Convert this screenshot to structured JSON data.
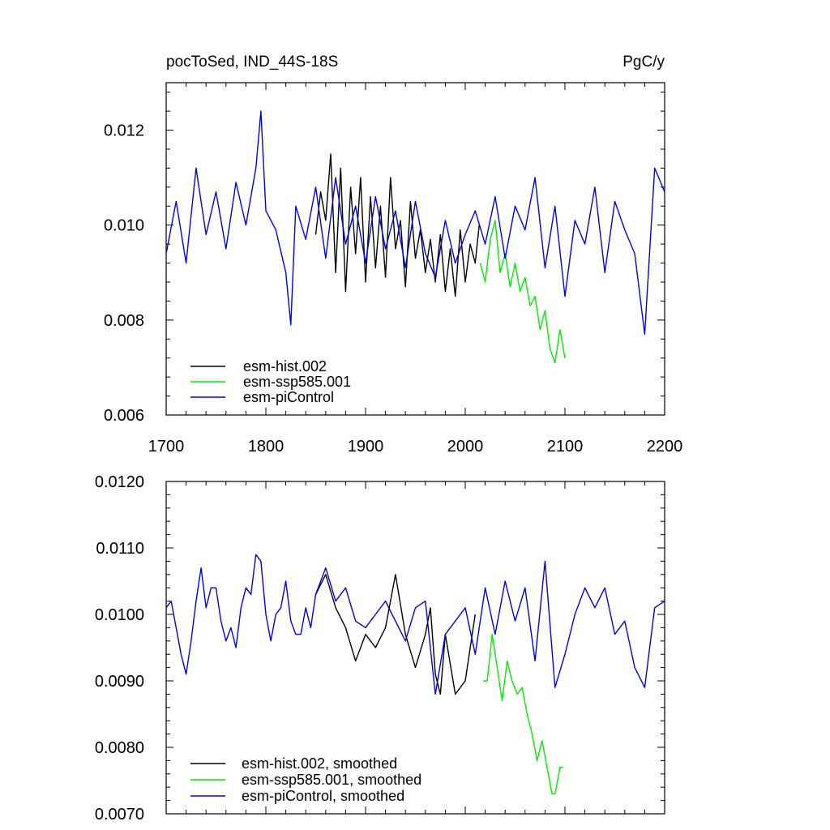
{
  "chart_data": [
    {
      "type": "line",
      "title_left": "pocToSed, IND_44S-18S",
      "title_right": "PgC/y",
      "xlim": [
        1700,
        2200
      ],
      "ylim": [
        0.006,
        0.013
      ],
      "x_ticks": [
        1700,
        1800,
        1900,
        2000,
        2100,
        2200
      ],
      "x_tick_labels": [
        "1700",
        "1800",
        "1900",
        "2000",
        "2100",
        "2200"
      ],
      "y_ticks": [
        0.006,
        0.008,
        0.01,
        0.012
      ],
      "y_tick_labels": [
        "0.006",
        "0.008",
        "0.010",
        "0.012"
      ],
      "legend": [
        "esm-hist.002",
        "esm-ssp585.001",
        "esm-piControl"
      ],
      "series": [
        {
          "name": "esm-hist.002",
          "color": "#000000",
          "x": [
            1850,
            1855,
            1860,
            1865,
            1870,
            1875,
            1880,
            1885,
            1890,
            1895,
            1900,
            1905,
            1910,
            1915,
            1920,
            1925,
            1930,
            1935,
            1940,
            1945,
            1950,
            1955,
            1960,
            1965,
            1970,
            1975,
            1980,
            1985,
            1990,
            1995,
            2000,
            2005,
            2010,
            2014
          ],
          "values": [
            0.0098,
            0.0107,
            0.0101,
            0.0115,
            0.009,
            0.0112,
            0.0086,
            0.0108,
            0.0094,
            0.011,
            0.0088,
            0.0106,
            0.0091,
            0.0104,
            0.0089,
            0.011,
            0.0095,
            0.0101,
            0.0087,
            0.0105,
            0.0093,
            0.0099,
            0.009,
            0.0097,
            0.0088,
            0.0098,
            0.0086,
            0.0095,
            0.0085,
            0.0099,
            0.0088,
            0.0096,
            0.0092,
            0.01
          ]
        },
        {
          "name": "esm-ssp585.001",
          "color": "#00ee00",
          "x": [
            2015,
            2020,
            2025,
            2030,
            2035,
            2040,
            2045,
            2050,
            2055,
            2060,
            2065,
            2070,
            2075,
            2080,
            2085,
            2090,
            2095,
            2100
          ],
          "values": [
            0.0092,
            0.0088,
            0.0097,
            0.0101,
            0.009,
            0.0094,
            0.0087,
            0.0092,
            0.0086,
            0.0089,
            0.0083,
            0.0085,
            0.0078,
            0.0082,
            0.0074,
            0.0071,
            0.0078,
            0.0072
          ]
        },
        {
          "name": "esm-piControl",
          "color": "#0000ee",
          "x": [
            1700,
            1710,
            1720,
            1730,
            1740,
            1750,
            1760,
            1770,
            1780,
            1790,
            1795,
            1800,
            1810,
            1820,
            1825,
            1830,
            1840,
            1850,
            1860,
            1870,
            1880,
            1890,
            1900,
            1910,
            1920,
            1930,
            1940,
            1950,
            1960,
            1970,
            1980,
            1990,
            2000,
            2010,
            2020,
            2030,
            2040,
            2050,
            2060,
            2070,
            2080,
            2090,
            2100,
            2110,
            2120,
            2130,
            2140,
            2150,
            2160,
            2170,
            2180,
            2190,
            2200
          ],
          "values": [
            0.0094,
            0.0105,
            0.0092,
            0.0112,
            0.0098,
            0.0107,
            0.0095,
            0.0109,
            0.01,
            0.0112,
            0.0124,
            0.0103,
            0.0099,
            0.009,
            0.0079,
            0.0104,
            0.0097,
            0.0108,
            0.0093,
            0.011,
            0.0096,
            0.0104,
            0.0092,
            0.0106,
            0.0095,
            0.0103,
            0.0091,
            0.0105,
            0.0094,
            0.0089,
            0.0101,
            0.0092,
            0.0098,
            0.0103,
            0.0096,
            0.0106,
            0.0093,
            0.0104,
            0.0099,
            0.011,
            0.0091,
            0.0104,
            0.0085,
            0.0101,
            0.0096,
            0.0108,
            0.009,
            0.0105,
            0.0099,
            0.0094,
            0.0077,
            0.0112,
            0.0107
          ]
        }
      ]
    },
    {
      "type": "line",
      "xlim": [
        1700,
        2200
      ],
      "ylim": [
        0.007,
        0.012
      ],
      "y_ticks": [
        0.007,
        0.008,
        0.009,
        0.01,
        0.011,
        0.012
      ],
      "y_tick_labels": [
        "0.0070",
        "0.0080",
        "0.0090",
        "0.0100",
        "0.0110",
        "0.0120"
      ],
      "legend": [
        "esm-hist.002, smoothed",
        "esm-ssp585.001, smoothed",
        "esm-piControl, smoothed"
      ],
      "series": [
        {
          "name": "esm-hist.002, smoothed",
          "color": "#000000",
          "x": [
            1850,
            1860,
            1870,
            1880,
            1890,
            1900,
            1910,
            1920,
            1930,
            1940,
            1950,
            1960,
            1965,
            1970,
            1975,
            1980,
            1990,
            2000,
            2010
          ],
          "values": [
            0.0103,
            0.0106,
            0.0101,
            0.0098,
            0.0093,
            0.0097,
            0.0095,
            0.0098,
            0.0106,
            0.0097,
            0.0092,
            0.0097,
            0.0101,
            0.0091,
            0.0088,
            0.0097,
            0.0088,
            0.009,
            0.01
          ]
        },
        {
          "name": "esm-ssp585.001, smoothed",
          "color": "#00ee00",
          "x": [
            2018,
            2022,
            2027,
            2032,
            2037,
            2042,
            2047,
            2052,
            2057,
            2062,
            2067,
            2072,
            2077,
            2082,
            2087,
            2090,
            2095,
            2098
          ],
          "values": [
            0.009,
            0.009,
            0.0097,
            0.0092,
            0.0087,
            0.0093,
            0.009,
            0.0088,
            0.0089,
            0.0085,
            0.0082,
            0.0078,
            0.0081,
            0.0077,
            0.0073,
            0.0073,
            0.0077,
            0.0077
          ]
        },
        {
          "name": "esm-piControl, smoothed",
          "color": "#0000ee",
          "x": [
            1700,
            1705,
            1710,
            1715,
            1720,
            1725,
            1730,
            1735,
            1740,
            1745,
            1750,
            1755,
            1760,
            1765,
            1770,
            1775,
            1780,
            1785,
            1790,
            1795,
            1800,
            1805,
            1810,
            1815,
            1820,
            1825,
            1830,
            1835,
            1840,
            1845,
            1850,
            1860,
            1870,
            1880,
            1890,
            1900,
            1910,
            1920,
            1930,
            1940,
            1950,
            1960,
            1970,
            1980,
            1990,
            2000,
            2010,
            2020,
            2030,
            2040,
            2050,
            2060,
            2070,
            2080,
            2090,
            2100,
            2110,
            2120,
            2130,
            2140,
            2150,
            2160,
            2170,
            2180,
            2190,
            2200
          ],
          "values": [
            0.0101,
            0.0102,
            0.0098,
            0.0094,
            0.0091,
            0.0096,
            0.0102,
            0.0107,
            0.0101,
            0.0104,
            0.0104,
            0.0099,
            0.0096,
            0.0098,
            0.0095,
            0.0101,
            0.0104,
            0.0103,
            0.0109,
            0.0108,
            0.01,
            0.0096,
            0.01,
            0.0101,
            0.0105,
            0.0099,
            0.0097,
            0.0097,
            0.0101,
            0.0098,
            0.0103,
            0.0107,
            0.0102,
            0.0104,
            0.0099,
            0.0098,
            0.01,
            0.0102,
            0.0099,
            0.0096,
            0.0101,
            0.0102,
            0.0088,
            0.0097,
            0.0099,
            0.0101,
            0.0094,
            0.0104,
            0.0097,
            0.0105,
            0.0099,
            0.0104,
            0.0093,
            0.0108,
            0.0089,
            0.0094,
            0.01,
            0.0104,
            0.0101,
            0.0104,
            0.0097,
            0.0099,
            0.0092,
            0.0089,
            0.0101,
            0.0102
          ]
        }
      ]
    }
  ]
}
